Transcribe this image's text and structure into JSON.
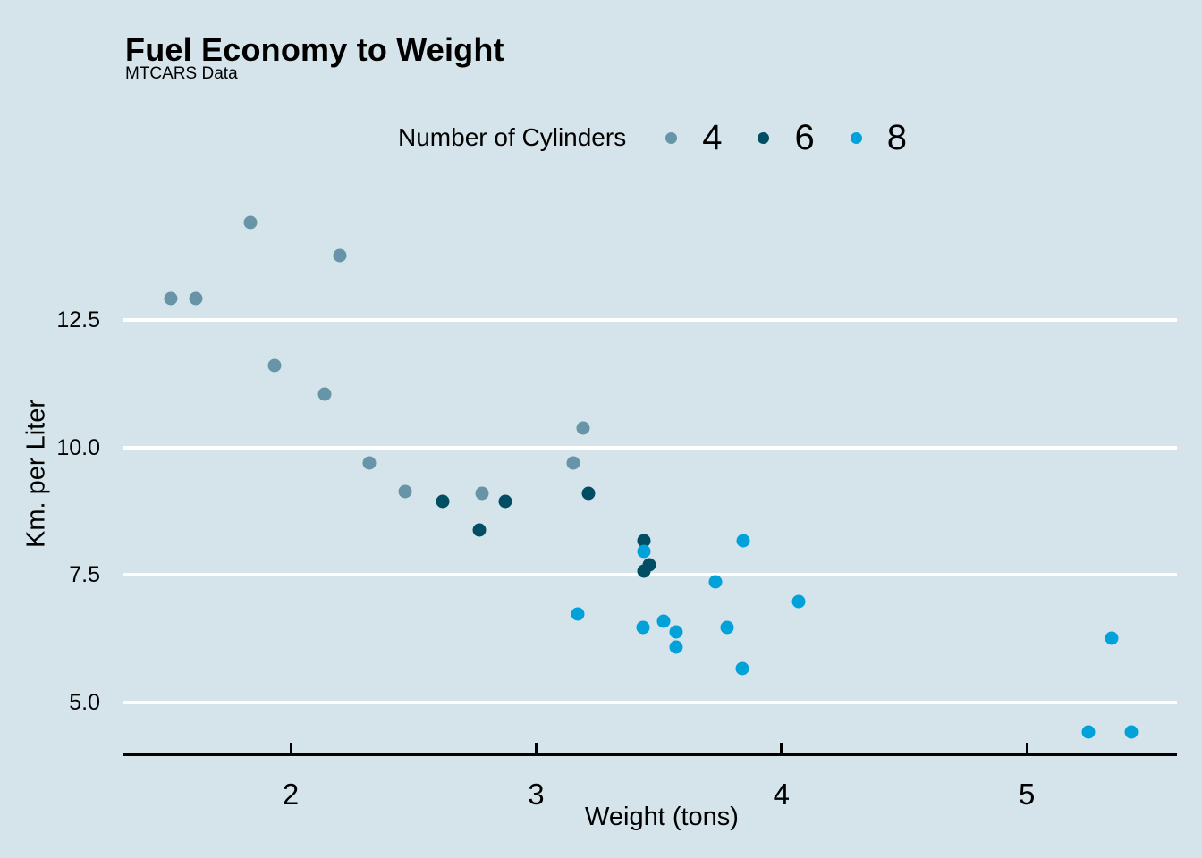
{
  "title": "Fuel Economy to Weight",
  "subtitle": "MTCARS Data",
  "legend": {
    "title": "Number of Cylinders",
    "items": [
      {
        "label": "4",
        "color": "#6794a7"
      },
      {
        "label": "6",
        "color": "#014d64"
      },
      {
        "label": "8",
        "color": "#01a2d9"
      }
    ]
  },
  "axes": {
    "x": {
      "label": "Weight (tons)",
      "tick_labels": [
        "2",
        "3",
        "4",
        "5"
      ]
    },
    "y": {
      "label": "Km. per Liter",
      "tick_labels": [
        "5.0",
        "7.5",
        "10.0",
        "12.5"
      ]
    }
  },
  "colors": {
    "background": "#d5e4eb",
    "gridline": "#ffffff",
    "axis_line": "#000000",
    "text": "#000000",
    "cyl4": "#6794a7",
    "cyl6": "#014d64",
    "cyl8": "#01a2d9"
  },
  "chart_data": {
    "type": "scatter",
    "title": "Fuel Economy to Weight",
    "subtitle": "MTCARS Data",
    "xlabel": "Weight (tons)",
    "ylabel": "Km. per Liter",
    "legend_title": "Number of Cylinders",
    "legend_position": "top",
    "grid": "horizontal white major gridlines only",
    "xlim": [
      1.31,
      5.61
    ],
    "ylim": [
      3.95,
      15.1
    ],
    "x_ticks": [
      2,
      3,
      4,
      5
    ],
    "y_ticks": [
      5.0,
      7.5,
      10.0,
      12.5
    ],
    "series": [
      {
        "name": "4",
        "color": "#6794a7",
        "points": [
          [
            2.32,
            9.69
          ],
          [
            3.19,
            10.37
          ],
          [
            3.15,
            9.69
          ],
          [
            2.2,
            13.77
          ],
          [
            1.615,
            12.92
          ],
          [
            1.835,
            14.41
          ],
          [
            2.465,
            9.14
          ],
          [
            1.935,
            11.61
          ],
          [
            2.14,
            11.05
          ],
          [
            1.513,
            12.92
          ],
          [
            2.78,
            9.1
          ]
        ]
      },
      {
        "name": "6",
        "color": "#014d64",
        "points": [
          [
            2.62,
            8.93
          ],
          [
            2.875,
            8.93
          ],
          [
            3.215,
            9.1
          ],
          [
            3.46,
            7.7
          ],
          [
            3.44,
            8.16
          ],
          [
            3.44,
            7.57
          ],
          [
            2.77,
            8.38
          ]
        ]
      },
      {
        "name": "8",
        "color": "#01a2d9",
        "points": [
          [
            3.44,
            7.95
          ],
          [
            3.57,
            6.08
          ],
          [
            4.07,
            6.97
          ],
          [
            3.73,
            7.36
          ],
          [
            3.78,
            6.46
          ],
          [
            5.25,
            4.42
          ],
          [
            5.424,
            4.42
          ],
          [
            5.345,
            6.25
          ],
          [
            3.52,
            6.59
          ],
          [
            3.435,
            6.46
          ],
          [
            3.84,
            5.65
          ],
          [
            3.845,
            8.16
          ],
          [
            3.17,
            6.72
          ],
          [
            3.57,
            6.38
          ]
        ]
      }
    ]
  }
}
